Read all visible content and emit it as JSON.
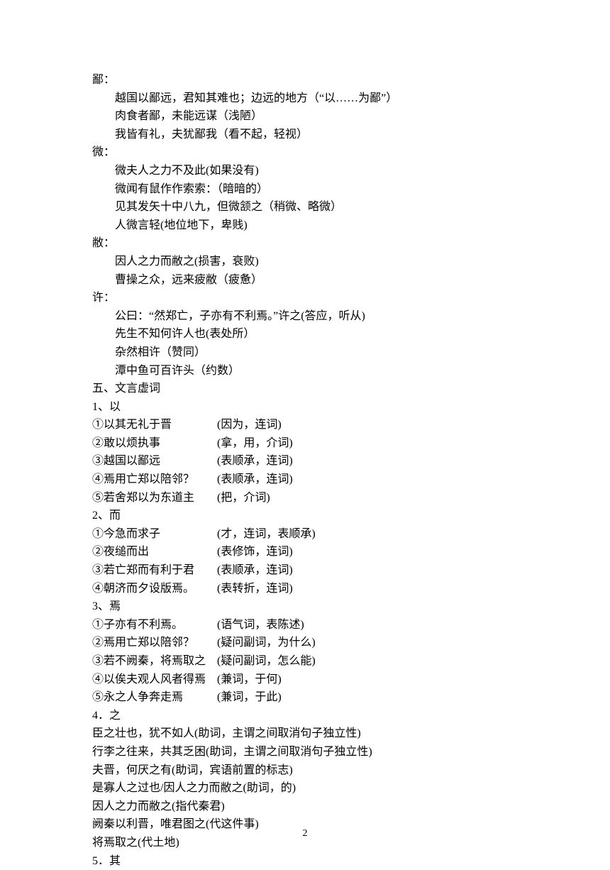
{
  "sections": {
    "bi": {
      "title": "鄙：",
      "lines": [
        "越国以鄙远，君知其难也；边远的地方（“以……为鄙”）",
        "肉食者鄙，未能远谋（浅陋）",
        "我皆有礼，夫犹鄙我（看不起，轻视）"
      ]
    },
    "wei": {
      "title": "微：",
      "lines": [
        "微夫人之力不及此(如果没有)",
        "微闻有鼠作作索索：（暗暗的）",
        "见其发矢十中八九，但微颔之（稍微、略微）",
        "人微言轻(地位地下，卑贱)"
      ]
    },
    "bi2": {
      "title": "敝：",
      "lines": [
        "因人之力而敝之(损害，衰败)",
        "曹操之众，远来疲敝（疲惫）"
      ]
    },
    "xu": {
      "title": "许：",
      "lines": [
        "公曰：“然郑亡，子亦有不利焉。”许之(答应，听从)",
        "先生不知何许人也(表处所）",
        "杂然相许（赞同）",
        "潭中鱼可百许头（约数）"
      ]
    },
    "functionWords": {
      "title": "五、文言虚词",
      "groups": [
        {
          "label": "1、以",
          "items": [
            {
              "text": "①以其无礼于晋",
              "note": "(因为，连词)"
            },
            {
              "text": "②敢以烦执事",
              "note": "(拿，用，介词)"
            },
            {
              "text": "③越国以鄙远",
              "note": "(表顺承，连词)"
            },
            {
              "text": "④焉用亡郑以陪邻？",
              "note": "(表顺承，连词)"
            },
            {
              "text": "⑤若舍郑以为东道主",
              "note": "(把，介词)"
            }
          ]
        },
        {
          "label": "2、而",
          "items": [
            {
              "text": "①今急而求子",
              "note": "(才，连词，表顺承)"
            },
            {
              "text": "②夜缒而出",
              "note": "(表修饰，连词)"
            },
            {
              "text": "③若亡郑而有利于君",
              "note": "(表顺承，连词)"
            },
            {
              "text": "④朝济而夕设版焉。",
              "note": "(表转折，连词)"
            }
          ]
        },
        {
          "label": "3、焉",
          "items": [
            {
              "text": "①子亦有不利焉。",
              "note": "(语气词，表陈述)"
            },
            {
              "text": "②焉用亡郑以陪邻？",
              "note": "(疑问副词，为什么)"
            },
            {
              "text": "③若不阙秦，将焉取之",
              "note": "(疑问副词，怎么能)"
            },
            {
              "text": "④以俟夫观人风者得焉",
              "note": "(兼词，于何)"
            },
            {
              "text": "⑤永之人争奔走焉",
              "note": "(兼词，于此)"
            }
          ]
        },
        {
          "label": "4．之",
          "lines": [
            "臣之壮也，犹不如人(助词，主谓之间取消句子独立性)",
            "行李之往来，共其乏困(助词，主谓之间取消句子独立性)",
            "夫晋，何厌之有(助词，宾语前置的标志)",
            "是寡人之过也/因人之力而敝之(助词，的)",
            "因人之力而敝之(指代秦君)",
            "阙秦以利晋，唯君图之(代这件事)",
            "将焉取之(代土地)"
          ]
        },
        {
          "label": "5．其"
        }
      ]
    }
  },
  "pageNumber": "2"
}
